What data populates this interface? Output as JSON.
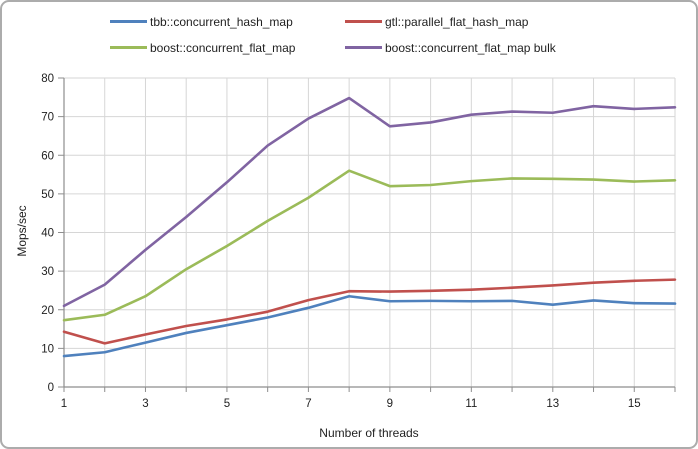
{
  "chart_data": {
    "type": "line",
    "categories": [
      1,
      2,
      3,
      4,
      5,
      6,
      7,
      8,
      9,
      10,
      11,
      12,
      13,
      14,
      15,
      16
    ],
    "x_tick_labels": [
      1,
      3,
      5,
      7,
      9,
      11,
      13,
      15
    ],
    "x_label_step": 2,
    "y_ticks": [
      0,
      10,
      20,
      30,
      40,
      50,
      60,
      70,
      80
    ],
    "ylim": [
      0,
      80
    ],
    "xlabel": "Number of threads",
    "ylabel": "Mops/sec",
    "grid": true,
    "legend_position": "top",
    "series": [
      {
        "name": "tbb::concurrent_hash_map",
        "color": "#4F81BD",
        "values": [
          8.0,
          9.0,
          11.5,
          14.0,
          16.0,
          18.0,
          20.5,
          23.5,
          22.2,
          22.3,
          22.2,
          22.3,
          21.3,
          22.4,
          21.7,
          21.6
        ]
      },
      {
        "name": "gtl::parallel_flat_hash_map",
        "color": "#C0504D",
        "values": [
          14.3,
          11.3,
          13.6,
          15.8,
          17.5,
          19.5,
          22.5,
          24.8,
          24.7,
          24.9,
          25.2,
          25.7,
          26.3,
          27.0,
          27.5,
          27.8
        ]
      },
      {
        "name": "boost::concurrent_flat_map",
        "color": "#9BBB59",
        "values": [
          17.3,
          18.7,
          23.5,
          30.5,
          36.5,
          43.0,
          49.0,
          56.0,
          52.0,
          52.3,
          53.3,
          54.0,
          53.9,
          53.7,
          53.2,
          53.5
        ]
      },
      {
        "name": "boost::concurrent_flat_map bulk",
        "color": "#8064A2",
        "values": [
          21.0,
          26.5,
          35.5,
          44.0,
          53.0,
          62.5,
          69.5,
          74.8,
          67.5,
          68.5,
          70.5,
          71.3,
          71.0,
          72.7,
          72.0,
          72.4
        ]
      }
    ],
    "colors": {
      "gridline": "#D6D6D6",
      "axis": "#8E8E8E",
      "tick_text": "#1f1f1f"
    }
  }
}
